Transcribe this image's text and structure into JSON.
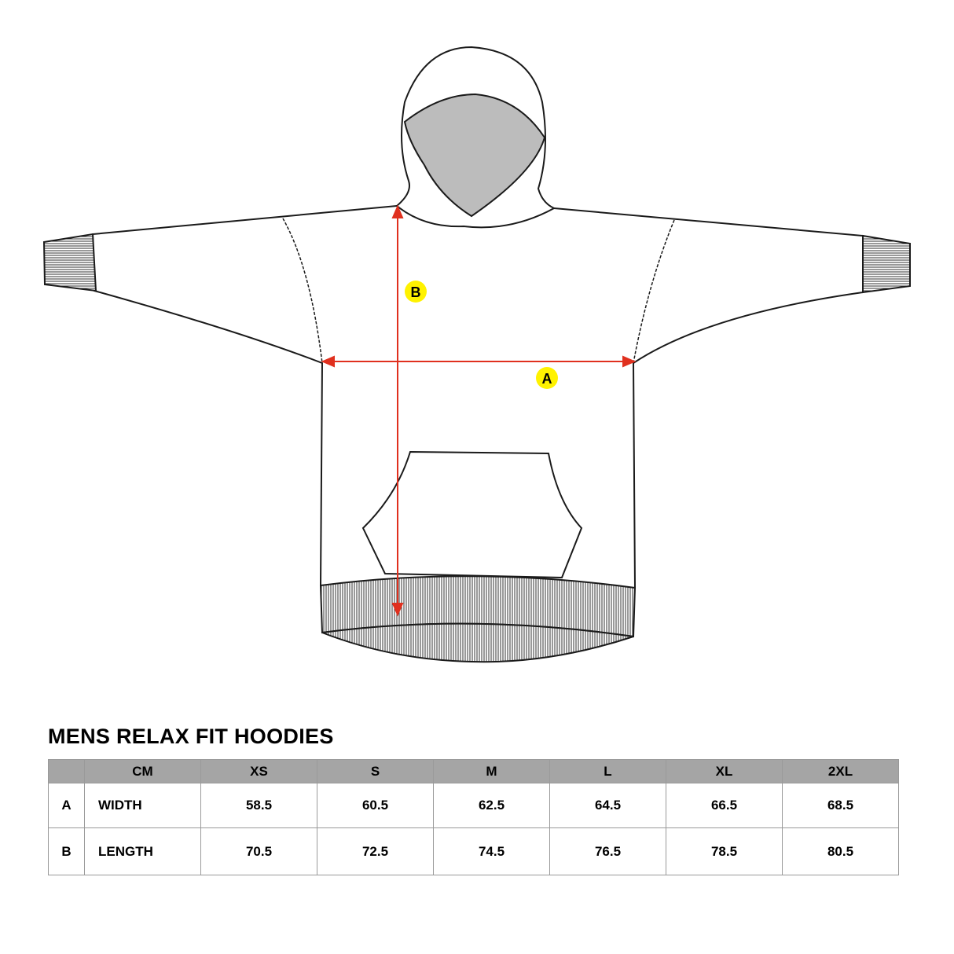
{
  "title": "MENS RELAX FIT HOODIES",
  "diagram": {
    "markers": [
      {
        "label": "A",
        "measure": "width"
      },
      {
        "label": "B",
        "measure": "length"
      }
    ],
    "colors": {
      "arrow": "#e0301e",
      "marker": "#fff200",
      "hood_lining": "#bcbcbc",
      "outline": "#1a1a1a"
    }
  },
  "table": {
    "header": [
      "",
      "CM",
      "XS",
      "S",
      "M",
      "L",
      "XL",
      "2XL"
    ],
    "rows": [
      {
        "key": "A",
        "name": "WIDTH",
        "values": [
          "58.5",
          "60.5",
          "62.5",
          "64.5",
          "66.5",
          "68.5"
        ]
      },
      {
        "key": "B",
        "name": "LENGTH",
        "values": [
          "70.5",
          "72.5",
          "74.5",
          "76.5",
          "78.5",
          "80.5"
        ]
      }
    ],
    "header_color": "#a5a5a5"
  }
}
